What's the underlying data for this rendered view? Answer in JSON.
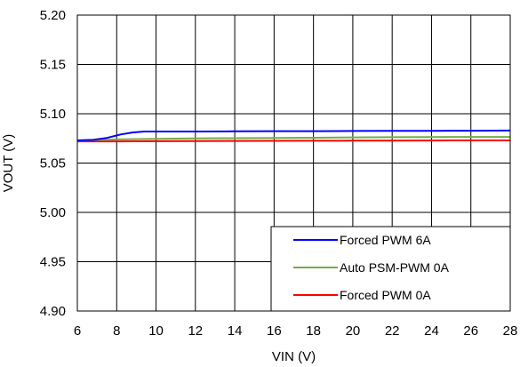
{
  "chart_data": {
    "type": "line",
    "title": "",
    "xlabel": "VIN (V)",
    "ylabel": "VOUT (V)",
    "xlim": [
      6,
      28
    ],
    "ylim": [
      4.9,
      5.2
    ],
    "x_ticks": [
      "6",
      "8",
      "10",
      "12",
      "14",
      "16",
      "18",
      "20",
      "22",
      "24",
      "26",
      "28"
    ],
    "y_ticks": [
      "4.90",
      "4.95",
      "5.00",
      "5.05",
      "5.10",
      "5.15",
      "5.20"
    ],
    "x_tick_values": [
      6,
      8,
      10,
      12,
      14,
      16,
      18,
      20,
      22,
      24,
      26,
      28
    ],
    "y_tick_values": [
      4.9,
      4.95,
      5.0,
      5.05,
      5.1,
      5.15,
      5.2
    ],
    "grid": true,
    "legend_position": "bottom-right",
    "series": [
      {
        "name": "Forced PWM 6A",
        "color": "#0000ff",
        "x": [
          6,
          6.8,
          7.5,
          8.2,
          8.8,
          9.4,
          10,
          12,
          14,
          16,
          18,
          20,
          22,
          24,
          26,
          28
        ],
        "y": [
          5.073,
          5.0735,
          5.0755,
          5.079,
          5.081,
          5.082,
          5.082,
          5.082,
          5.0822,
          5.0823,
          5.0823,
          5.0825,
          5.0826,
          5.0827,
          5.0828,
          5.083
        ]
      },
      {
        "name": "Auto PSM-PWM 0A",
        "color": "#70ad47",
        "x": [
          6,
          8,
          10,
          12,
          14,
          16,
          18,
          20,
          22,
          24,
          26,
          28
        ],
        "y": [
          5.073,
          5.074,
          5.0745,
          5.075,
          5.0752,
          5.0755,
          5.0757,
          5.076,
          5.0762,
          5.0764,
          5.0765,
          5.0765
        ]
      },
      {
        "name": "Forced PWM 0A",
        "color": "#ff0000",
        "x": [
          6,
          8,
          10,
          12,
          14,
          16,
          18,
          20,
          22,
          24,
          26,
          28
        ],
        "y": [
          5.072,
          5.072,
          5.0722,
          5.0723,
          5.0724,
          5.0725,
          5.0726,
          5.0727,
          5.0728,
          5.0729,
          5.073,
          5.073
        ]
      }
    ]
  }
}
